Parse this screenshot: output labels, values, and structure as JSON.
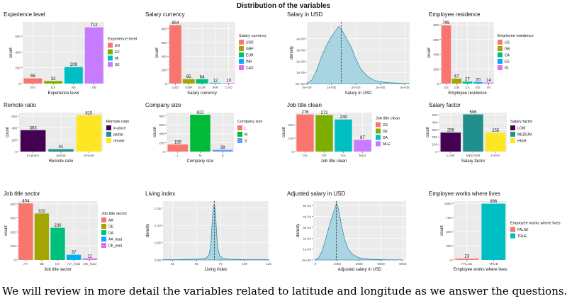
{
  "figure": {
    "title": "Distribution of the variables",
    "caption": "We will review in more detail the variables related to latitude and longitude as we answer the questions."
  },
  "colors": {
    "panel_bg": "#ebebeb",
    "grid": "#ffffff",
    "density_fill": "#a9d5e3",
    "density_line": "#3d8db0"
  },
  "chart_data": [
    {
      "type": "bar",
      "title": "Experience level",
      "xlabel": "Experience level",
      "ylabel": "count",
      "categories": [
        "EN",
        "EX",
        "MI",
        "SE"
      ],
      "values": [
        66,
        32,
        209,
        712
      ],
      "colors": [
        "#f8766d",
        "#7cae00",
        "#00bfc4",
        "#c77cff"
      ],
      "ylim": [
        0,
        780
      ],
      "yticks": [
        0,
        200,
        400,
        600
      ],
      "legend": {
        "title": "Experience level",
        "position": "right",
        "entries": [
          "EN",
          "EX",
          "MI",
          "SE"
        ]
      }
    },
    {
      "type": "bar",
      "title": "Salary currency",
      "xlabel": "Salary currency",
      "ylabel": "count",
      "categories": [
        "USD",
        "GBP",
        "EUR",
        "INR",
        "CAD"
      ],
      "values": [
        854,
        65,
        64,
        12,
        10
      ],
      "colors": [
        "#f8766d",
        "#a3a500",
        "#00bf7d",
        "#00b0f6",
        "#e76bf3"
      ],
      "ylim": [
        0,
        900
      ],
      "yticks": [
        0,
        200,
        400,
        600,
        800
      ],
      "legend": {
        "title": "Salary currency",
        "position": "right",
        "entries": [
          "USD",
          "GBP",
          "EUR",
          "INR",
          "CAD"
        ]
      }
    },
    {
      "type": "area",
      "title": "Salary in USD",
      "xlabel": "Salary in USD",
      "ylabel": "density",
      "xlim": [
        0,
        420000
      ],
      "ylim": [
        0,
        5.5e-06
      ],
      "xticks": [
        0,
        100000,
        200000,
        300000,
        400000
      ],
      "xtick_labels": [
        "0e+00",
        "1e+05",
        "2e+05",
        "3e+05",
        "4e+05"
      ],
      "yticks": [
        0,
        1e-06,
        2e-06,
        3e-06,
        4e-06
      ],
      "ytick_labels": [
        "0e+00",
        "1e-06",
        "2e-06",
        "3e-06",
        "4e-06"
      ],
      "x": [
        0,
        20000,
        40000,
        60000,
        80000,
        100000,
        120000,
        130000,
        140000,
        150000,
        160000,
        180000,
        200000,
        220000,
        250000,
        280000,
        320000,
        360000,
        400000,
        420000
      ],
      "y": [
        5e-08,
        3e-07,
        1.2e-06,
        2.4e-06,
        3.4e-06,
        4.2e-06,
        4.8e-06,
        5.1e-06,
        4.9e-06,
        4.5e-06,
        4.1e-06,
        3.3e-06,
        2.2e-06,
        1.3e-06,
        6e-07,
        2.5e-07,
        1e-07,
        5e-08,
        2e-08,
        1e-08
      ],
      "mean_line": 140000
    },
    {
      "type": "bar",
      "title": "Employee residence",
      "xlabel": "Employee residence",
      "ylabel": "count",
      "categories": [
        "US",
        "GB",
        "CA",
        "ES",
        "IN"
      ],
      "values": [
        795,
        67,
        27,
        20,
        14
      ],
      "colors": [
        "#f8766d",
        "#a3a500",
        "#00bf7d",
        "#00b0f6",
        "#e76bf3"
      ],
      "ylim": [
        0,
        840
      ],
      "yticks": [
        0,
        200,
        400,
        600,
        800
      ],
      "legend": {
        "title": "Employee residence",
        "position": "right",
        "entries": [
          "US",
          "GB",
          "CA",
          "ES",
          "IN"
        ]
      }
    },
    {
      "type": "bar",
      "title": "Remote ratio",
      "xlabel": "Remote ratio",
      "ylabel": "count",
      "categories": [
        "in-place",
        "partial",
        "remote"
      ],
      "values": [
        363,
        41,
        615
      ],
      "colors": [
        "#440154",
        "#21908c",
        "#fde725"
      ],
      "ylim": [
        0,
        660
      ],
      "yticks": [
        0,
        200,
        400,
        600
      ],
      "legend": {
        "title": "Remote ratio",
        "position": "right",
        "entries": [
          "in-place",
          "partial",
          "remote"
        ]
      }
    },
    {
      "type": "bar",
      "title": "Company size",
      "xlabel": "Company size",
      "ylabel": "count",
      "categories": [
        "L",
        "M",
        "S"
      ],
      "values": [
        159,
        822,
        38
      ],
      "colors": [
        "#f8766d",
        "#00ba38",
        "#619cff"
      ],
      "ylim": [
        0,
        870
      ],
      "yticks": [
        0,
        200,
        400,
        600,
        800
      ],
      "legend": {
        "title": "Company size",
        "position": "right",
        "entries": [
          "L",
          "M",
          "S"
        ]
      }
    },
    {
      "type": "bar",
      "title": "Job title clean",
      "xlabel": "Job title clean",
      "ylabel": "count",
      "categories": [
        "DS",
        "DE",
        "DA",
        "MLE"
      ],
      "values": [
        276,
        272,
        239,
        87
      ],
      "colors": [
        "#f8766d",
        "#7cae00",
        "#00bfc4",
        "#c77cff"
      ],
      "ylim": [
        0,
        290
      ],
      "yticks": [
        0,
        100,
        200
      ],
      "legend": {
        "title": "Job title clean",
        "position": "right",
        "entries": [
          "DS",
          "DE",
          "DA",
          "MLE"
        ]
      }
    },
    {
      "type": "bar",
      "title": "Salary factor",
      "xlabel": "Salary factor",
      "ylabel": "count",
      "categories": [
        "LOW",
        "MEDIUM",
        "HIGH"
      ],
      "values": [
        258,
        506,
        255
      ],
      "colors": [
        "#440154",
        "#21908c",
        "#fde725"
      ],
      "ylim": [
        0,
        530
      ],
      "yticks": [
        0,
        100,
        200,
        300,
        400,
        500
      ],
      "legend": {
        "title": "Salary factor",
        "position": "right",
        "entries": [
          "LOW",
          "MEDIUM",
          "HIGH"
        ]
      }
    },
    {
      "type": "bar",
      "title": "Job title sector",
      "xlabel": "Job title sector",
      "ylabel": "count",
      "categories": [
        "AA",
        "DE",
        "DA",
        "AA_lead",
        "DE_lead"
      ],
      "values": [
        404,
        332,
        230,
        37,
        11
      ],
      "colors": [
        "#f8766d",
        "#a3a500",
        "#00bf7d",
        "#00b0f6",
        "#e76bf3"
      ],
      "ylim": [
        0,
        420
      ],
      "yticks": [
        0,
        100,
        200,
        300,
        400
      ],
      "legend": {
        "title": "Job title sector",
        "position": "right",
        "entries": [
          "AA",
          "DE",
          "DA",
          "AA_lead",
          "DE_lead"
        ]
      }
    },
    {
      "type": "area",
      "title": "Living index",
      "xlabel": "Living index",
      "ylabel": "density",
      "xlim": [
        15,
        125
      ],
      "ylim": [
        0,
        0.17
      ],
      "xticks": [
        25,
        50,
        75,
        100,
        125
      ],
      "xtick_labels": [
        "25",
        "50",
        "75",
        "100",
        "125"
      ],
      "yticks": [
        0,
        0.05,
        0.1,
        0.15
      ],
      "ytick_labels": [
        "0.00",
        "0.05",
        "0.10",
        "0.15"
      ],
      "x": [
        15,
        30,
        45,
        55,
        60,
        63,
        65,
        66,
        67,
        68,
        69,
        70,
        71,
        72,
        74,
        78,
        85,
        100,
        125
      ],
      "y": [
        0.001,
        0.001,
        0.002,
        0.003,
        0.006,
        0.015,
        0.05,
        0.1,
        0.14,
        0.16,
        0.155,
        0.12,
        0.07,
        0.035,
        0.012,
        0.004,
        0.002,
        0.001,
        0.001
      ],
      "mean_line": 68.5
    },
    {
      "type": "area",
      "title": "Adjusted salary in USD",
      "xlabel": "Adjusted salary in USD",
      "ylabel": "density",
      "xlim": [
        -200,
        8300
      ],
      "ylim": [
        0,
        0.00054
      ],
      "xticks": [
        0,
        2000,
        4000,
        6000,
        8000
      ],
      "xtick_labels": [
        "0",
        "2000",
        "4000",
        "6000",
        "8000"
      ],
      "yticks": [
        0,
        0.0001,
        0.0002,
        0.0003,
        0.0004,
        0.0005
      ],
      "ytick_labels": [
        "0e+00",
        "1e-04",
        "2e-04",
        "3e-04",
        "4e-04",
        "5e-04"
      ],
      "x": [
        0,
        300,
        600,
        900,
        1200,
        1500,
        1700,
        1850,
        1950,
        2050,
        2200,
        2400,
        2700,
        3000,
        3400,
        4000,
        5000,
        6500,
        8000
      ],
      "y": [
        5e-06,
        2e-05,
        8e-05,
        0.00018,
        0.00029,
        0.00039,
        0.00045,
        0.0005,
        0.00052,
        0.00049,
        0.00042,
        0.00031,
        0.00018,
        0.0001,
        5e-05,
        2e-05,
        6e-06,
        2e-06,
        1e-06
      ],
      "mean_line": 1900
    },
    {
      "type": "bar",
      "title": "Employee works where lives",
      "xlabel": "Employee works where lives",
      "ylabel": "count",
      "categories": [
        "FALSE",
        "TRUE"
      ],
      "values": [
        23,
        996
      ],
      "colors": [
        "#f8766d",
        "#00bfc4"
      ],
      "ylim": [
        0,
        1040
      ],
      "yticks": [
        0,
        250,
        500,
        750,
        1000
      ],
      "legend": {
        "title": "Employee works where lives",
        "position": "right",
        "entries": [
          "FALSE",
          "TRUE"
        ]
      }
    }
  ]
}
